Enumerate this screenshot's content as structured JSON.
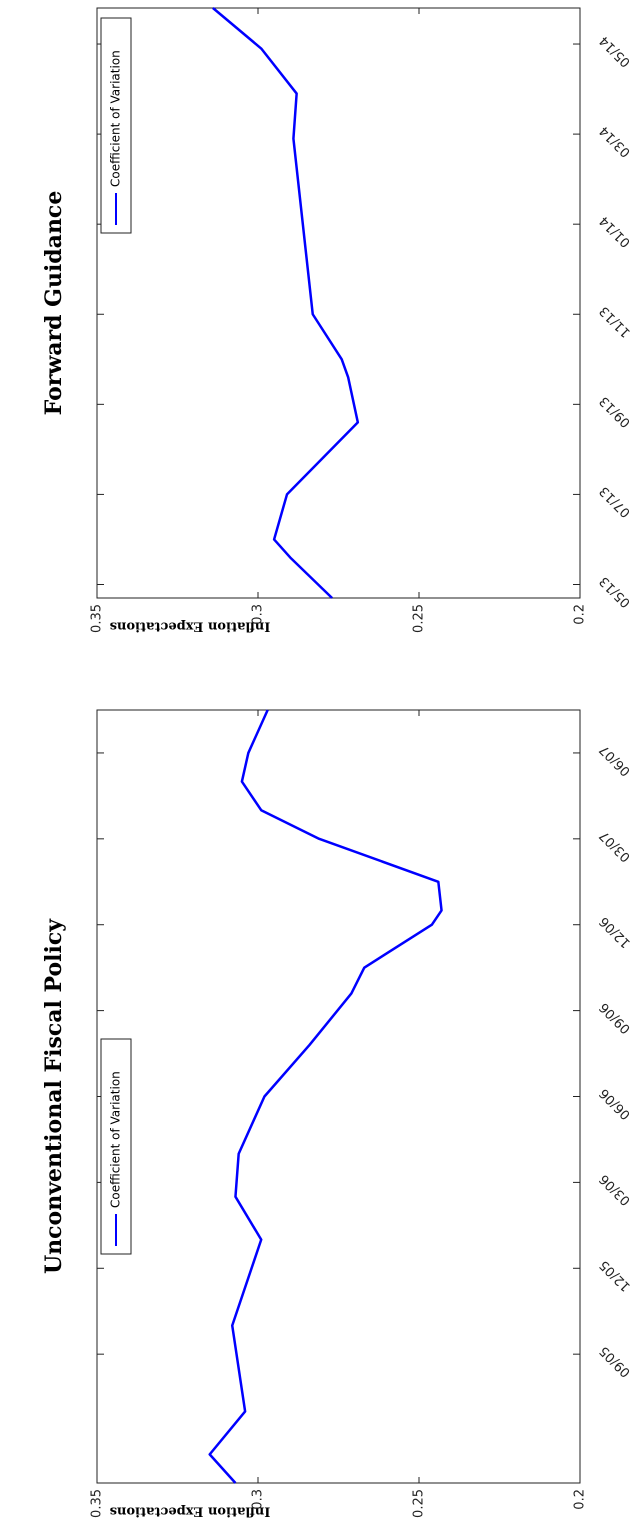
{
  "chart_data": [
    {
      "type": "line",
      "title": "Unconventional Fiscal Policy",
      "ylabel": "Inflation Expectations",
      "x": [
        4.5,
        5.5,
        7.0,
        10.0,
        13.0,
        14.5,
        16.0,
        18.0,
        19.8,
        21.6,
        22.5,
        24.0,
        24.5,
        25.5,
        27.0,
        28.0,
        29.0,
        30.0,
        31.5
      ],
      "series": [
        {
          "name": "Coefficient of Variation",
          "color": "#0000ff",
          "values": [
            0.307,
            0.315,
            0.304,
            0.308,
            0.299,
            0.307,
            0.306,
            0.298,
            0.284,
            0.271,
            0.267,
            0.246,
            0.243,
            0.244,
            0.281,
            0.299,
            0.305,
            0.303,
            0.297
          ]
        }
      ],
      "xlim": [
        4.5,
        31.5
      ],
      "xticks": [
        {
          "value": 9,
          "label": "09/05"
        },
        {
          "value": 12,
          "label": "12/05"
        },
        {
          "value": 15,
          "label": "03/06"
        },
        {
          "value": 18,
          "label": "06/06"
        },
        {
          "value": 21,
          "label": "09/06"
        },
        {
          "value": 24,
          "label": "12/06"
        },
        {
          "value": 27,
          "label": "03/07"
        },
        {
          "value": 30,
          "label": "06/07"
        }
      ],
      "ylim": [
        0.2,
        0.35
      ],
      "yticks": [
        0.2,
        0.25,
        0.3,
        0.35
      ],
      "legend": "north"
    },
    {
      "type": "line",
      "title": "Forward Guidance",
      "ylabel": "Inflation Expectations",
      "x": [
        4.7,
        5.6,
        6.0,
        7.0,
        8.6,
        9.6,
        10.0,
        11.0,
        14.9,
        15.9,
        16.9,
        17.8
      ],
      "series": [
        {
          "name": "Coefficient of Variation",
          "color": "#0000ff",
          "values": [
            0.277,
            0.29,
            0.295,
            0.291,
            0.269,
            0.272,
            0.274,
            0.283,
            0.289,
            0.288,
            0.299,
            0.314
          ]
        }
      ],
      "xlim": [
        4.7,
        17.8
      ],
      "xticks": [
        {
          "value": 5,
          "label": "05/13"
        },
        {
          "value": 7,
          "label": "07/13"
        },
        {
          "value": 9,
          "label": "09/13"
        },
        {
          "value": 11,
          "label": "11/13"
        },
        {
          "value": 13,
          "label": "01/14"
        },
        {
          "value": 15,
          "label": "03/14"
        },
        {
          "value": 17,
          "label": "05/14"
        }
      ],
      "ylim": [
        0.2,
        0.35
      ],
      "yticks": [
        0.2,
        0.25,
        0.3,
        0.35
      ],
      "legend": "northeast"
    }
  ]
}
